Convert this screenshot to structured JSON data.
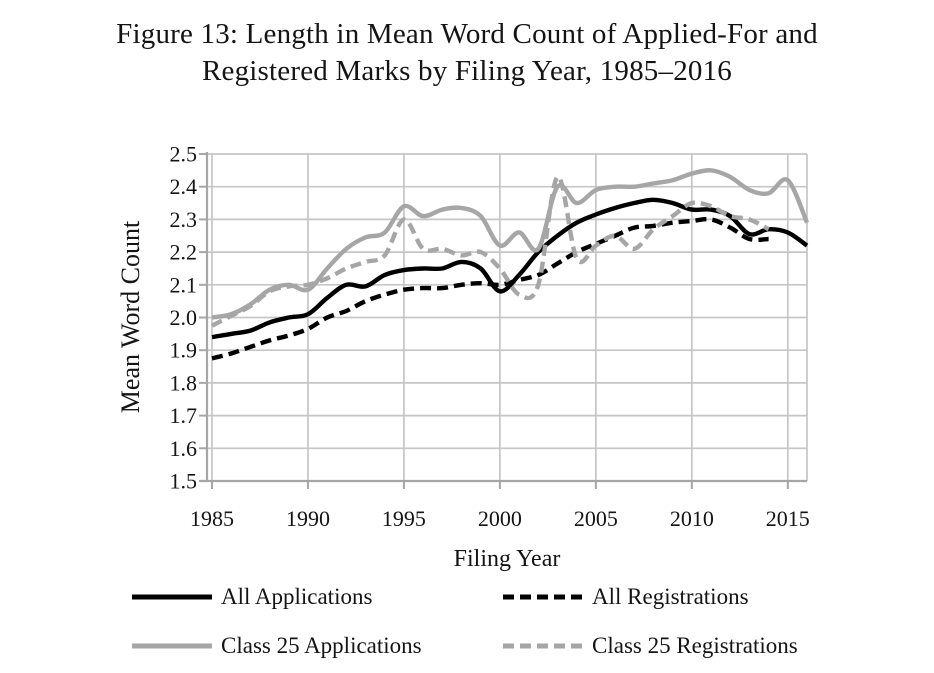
{
  "title": {
    "line1": "Figure 13: Length in Mean Word Count of Applied-For and",
    "line2": "Registered Marks by Filing Year, 1985–2016"
  },
  "chart_data": {
    "type": "line",
    "title": "Figure 13: Length in Mean Word Count of Applied-For and Registered Marks by Filing Year, 1985–2016",
    "xlabel": "Filing Year",
    "ylabel": "Mean Word Count",
    "xlim": [
      1984.74,
      2016.0
    ],
    "ylim": [
      1.5,
      2.5
    ],
    "grid": true,
    "legend_position": "bottom",
    "xticks": [
      1985,
      1990,
      1995,
      2000,
      2005,
      2010,
      2015
    ],
    "yticks": [
      1.5,
      1.6,
      1.7,
      1.8,
      1.9,
      2.0,
      2.1,
      2.2,
      2.3,
      2.4,
      2.5
    ],
    "x": [
      1985,
      1986,
      1987,
      1988,
      1989,
      1990,
      1991,
      1992,
      1993,
      1994,
      1995,
      1996,
      1997,
      1998,
      1999,
      2000,
      2001,
      2002,
      2003,
      2004,
      2005,
      2006,
      2007,
      2008,
      2009,
      2010,
      2011,
      2012,
      2013,
      2014,
      2015,
      2016
    ],
    "series": [
      {
        "name": "All Applications",
        "color": "#000000",
        "dash": null,
        "values": [
          1.94,
          1.95,
          1.96,
          1.985,
          2.0,
          2.01,
          2.06,
          2.1,
          2.095,
          2.13,
          2.145,
          2.15,
          2.15,
          2.17,
          2.15,
          2.08,
          2.13,
          2.2,
          2.25,
          2.29,
          2.315,
          2.335,
          2.35,
          2.36,
          2.35,
          2.33,
          2.33,
          2.31,
          2.255,
          2.27,
          2.26,
          2.22
        ]
      },
      {
        "name": "All Registrations",
        "color": "#000000",
        "dash": "11 6",
        "values": [
          1.875,
          1.89,
          1.91,
          1.93,
          1.945,
          1.965,
          2.0,
          2.02,
          2.05,
          2.07,
          2.085,
          2.09,
          2.09,
          2.1,
          2.105,
          2.1,
          2.115,
          2.13,
          2.165,
          2.2,
          2.225,
          2.25,
          2.275,
          2.28,
          2.29,
          2.295,
          2.3,
          2.275,
          2.24,
          2.24,
          null,
          null
        ]
      },
      {
        "name": "Class 25 Applications",
        "color": "#a6a6a6",
        "dash": null,
        "values": [
          2.0,
          2.01,
          2.04,
          2.085,
          2.1,
          2.085,
          2.15,
          2.21,
          2.245,
          2.26,
          2.34,
          2.31,
          2.33,
          2.335,
          2.31,
          2.22,
          2.26,
          2.21,
          2.4,
          2.35,
          2.39,
          2.4,
          2.4,
          2.41,
          2.42,
          2.44,
          2.45,
          2.43,
          2.39,
          2.38,
          2.42,
          2.29
        ]
      },
      {
        "name": "Class 25 Registrations",
        "color": "#a6a6a6",
        "dash": "11 6",
        "values": [
          1.975,
          2.005,
          2.035,
          2.08,
          2.095,
          2.1,
          2.12,
          2.15,
          2.17,
          2.19,
          2.3,
          2.21,
          2.21,
          2.19,
          2.2,
          2.15,
          2.07,
          2.1,
          2.43,
          2.18,
          2.22,
          2.25,
          2.21,
          2.27,
          2.31,
          2.35,
          2.34,
          2.31,
          2.3,
          2.27,
          null,
          null
        ]
      }
    ]
  },
  "colors": {
    "background": "#ffffff",
    "text": "#141414",
    "gridline": "#c6c6c6",
    "axis": "#a6a6a6",
    "series_black": "#000000",
    "series_gray": "#a6a6a6"
  }
}
